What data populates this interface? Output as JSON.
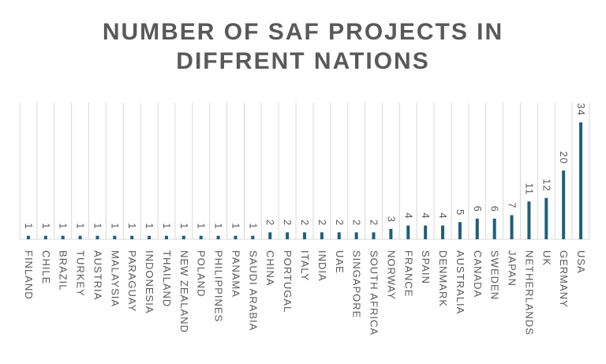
{
  "chart_data": {
    "type": "bar",
    "title_lines": [
      "NUMBER OF SAF PROJECTS IN",
      "DIFFRENT NATIONS"
    ],
    "categories": [
      "FINLAND",
      "CHILE",
      "BRAZIL",
      "TURKEY",
      "AUSTRIA",
      "MALAYSIA",
      "PARAGUAY",
      "INDONESIA",
      "THAILAND",
      "NEW ZEALAND",
      "POLAND",
      "PHILIPPINES",
      "PANAMA",
      "SAUDI ARABIA",
      "CHINA",
      "PORTUGAL",
      "ITALY",
      "INDIA",
      "UAE",
      "SINGAPORE",
      "SOUTH AFRICA",
      "NORWAY",
      "FRANCE",
      "SPAIN",
      "DENMARK",
      "AUSTRALIA",
      "CANADA",
      "SWEDEN",
      "JAPAN",
      "NETHERLANDS",
      "UK",
      "GERMANY",
      "USA"
    ],
    "values": [
      1,
      1,
      1,
      1,
      1,
      1,
      1,
      1,
      1,
      1,
      1,
      1,
      1,
      1,
      2,
      2,
      2,
      2,
      2,
      2,
      2,
      3,
      4,
      4,
      4,
      5,
      6,
      6,
      7,
      11,
      12,
      20,
      34
    ],
    "xlabel": "",
    "ylabel": "",
    "ylim": [
      0,
      34
    ],
    "grid": "vertical category separators",
    "data_labels": true,
    "legend": "none",
    "colors": {
      "bar": "#1f5f7a",
      "text": "#595959",
      "grid": "#d9d9d9"
    }
  }
}
